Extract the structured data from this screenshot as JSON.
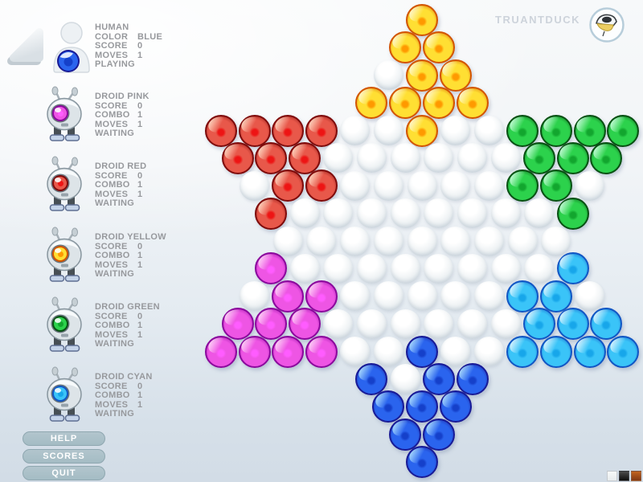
{
  "header": {
    "brand": "TRUANTDUCK"
  },
  "players": [
    {
      "kind": "human",
      "name": "HUMAN",
      "stats": [
        [
          "COLOR",
          "BLUE"
        ],
        [
          "SCORE",
          "0"
        ],
        [
          "MOVES",
          "1"
        ]
      ],
      "status": "PLAYING",
      "marble": "blue"
    },
    {
      "kind": "droid",
      "name": "DROID PINK",
      "stats": [
        [
          "SCORE",
          "0"
        ],
        [
          "COMBO",
          "1"
        ],
        [
          "MOVES",
          "1"
        ]
      ],
      "status": "WAITING",
      "marble": "magenta"
    },
    {
      "kind": "droid",
      "name": "DROID RED",
      "stats": [
        [
          "SCORE",
          "0"
        ],
        [
          "COMBO",
          "1"
        ],
        [
          "MOVES",
          "1"
        ]
      ],
      "status": "WAITING",
      "marble": "red"
    },
    {
      "kind": "droid",
      "name": "DROID YELLOW",
      "stats": [
        [
          "SCORE",
          "0"
        ],
        [
          "COMBO",
          "1"
        ],
        [
          "MOVES",
          "1"
        ]
      ],
      "status": "WAITING",
      "marble": "yellow"
    },
    {
      "kind": "droid",
      "name": "DROID GREEN",
      "stats": [
        [
          "SCORE",
          "0"
        ],
        [
          "COMBO",
          "1"
        ],
        [
          "MOVES",
          "1"
        ]
      ],
      "status": "WAITING",
      "marble": "green"
    },
    {
      "kind": "droid",
      "name": "DROID CYAN",
      "stats": [
        [
          "SCORE",
          "0"
        ],
        [
          "COMBO",
          "1"
        ],
        [
          "MOVES",
          "1"
        ]
      ],
      "status": "WAITING",
      "marble": "cyan"
    }
  ],
  "menu": {
    "buttons": [
      "HELP",
      "SCORES",
      "QUIT"
    ]
  },
  "board": {
    "legend": {
      "Y": "yellow",
      "R": "red",
      "G": "green",
      "M": "magenta",
      "C": "cyan",
      "B": "blue",
      ".": "empty"
    },
    "rows": [
      "Y",
      "YY",
      ".YY",
      "YYYY",
      "RRRR..Y..GGGG",
      "RRR......GGG",
      ".RR.....GG.",
      "R........G",
      ".........",
      "M........C",
      ".MM.....CC.",
      "MMM......CCC",
      "MMMM..B..CCCC",
      "B.BB",
      "BBB",
      "BB",
      "B"
    ]
  },
  "marble_colors": {
    "yellow": {
      "rim": "#d25400",
      "body": "#ffdf33",
      "light": "#fffad0",
      "core": "#ff9900"
    },
    "red": {
      "rim": "#7e0b0b",
      "body": "#e8584a",
      "light": "#ffd6c0",
      "core": "#ee1414"
    },
    "green": {
      "rim": "#075012",
      "body": "#2cd24c",
      "light": "#c4ffd8",
      "core": "#12a62e"
    },
    "magenta": {
      "rim": "#8a089c",
      "body": "#ee55e4",
      "light": "#ffd4f8",
      "core": "#ff5cff"
    },
    "cyan": {
      "rim": "#1156c4",
      "body": "#3ac4f8",
      "light": "#dcf6ff",
      "core": "#17a6ea"
    },
    "blue": {
      "rim": "#181a96",
      "body": "#2a64ee",
      "light": "#aadcff",
      "core": "#1540ca"
    },
    "empty": {
      "rim": "#d8e0e5",
      "body": "#eef2f4",
      "light": "#ffffff",
      "core": "#ffffff"
    }
  },
  "swatches": [
    {
      "name": "white",
      "from": "#f7f9f9",
      "to": "#e8ecee"
    },
    {
      "name": "black",
      "from": "#4c4c4c",
      "to": "#0e0e0e"
    },
    {
      "name": "orange",
      "from": "#c2641f",
      "to": "#823812"
    }
  ]
}
